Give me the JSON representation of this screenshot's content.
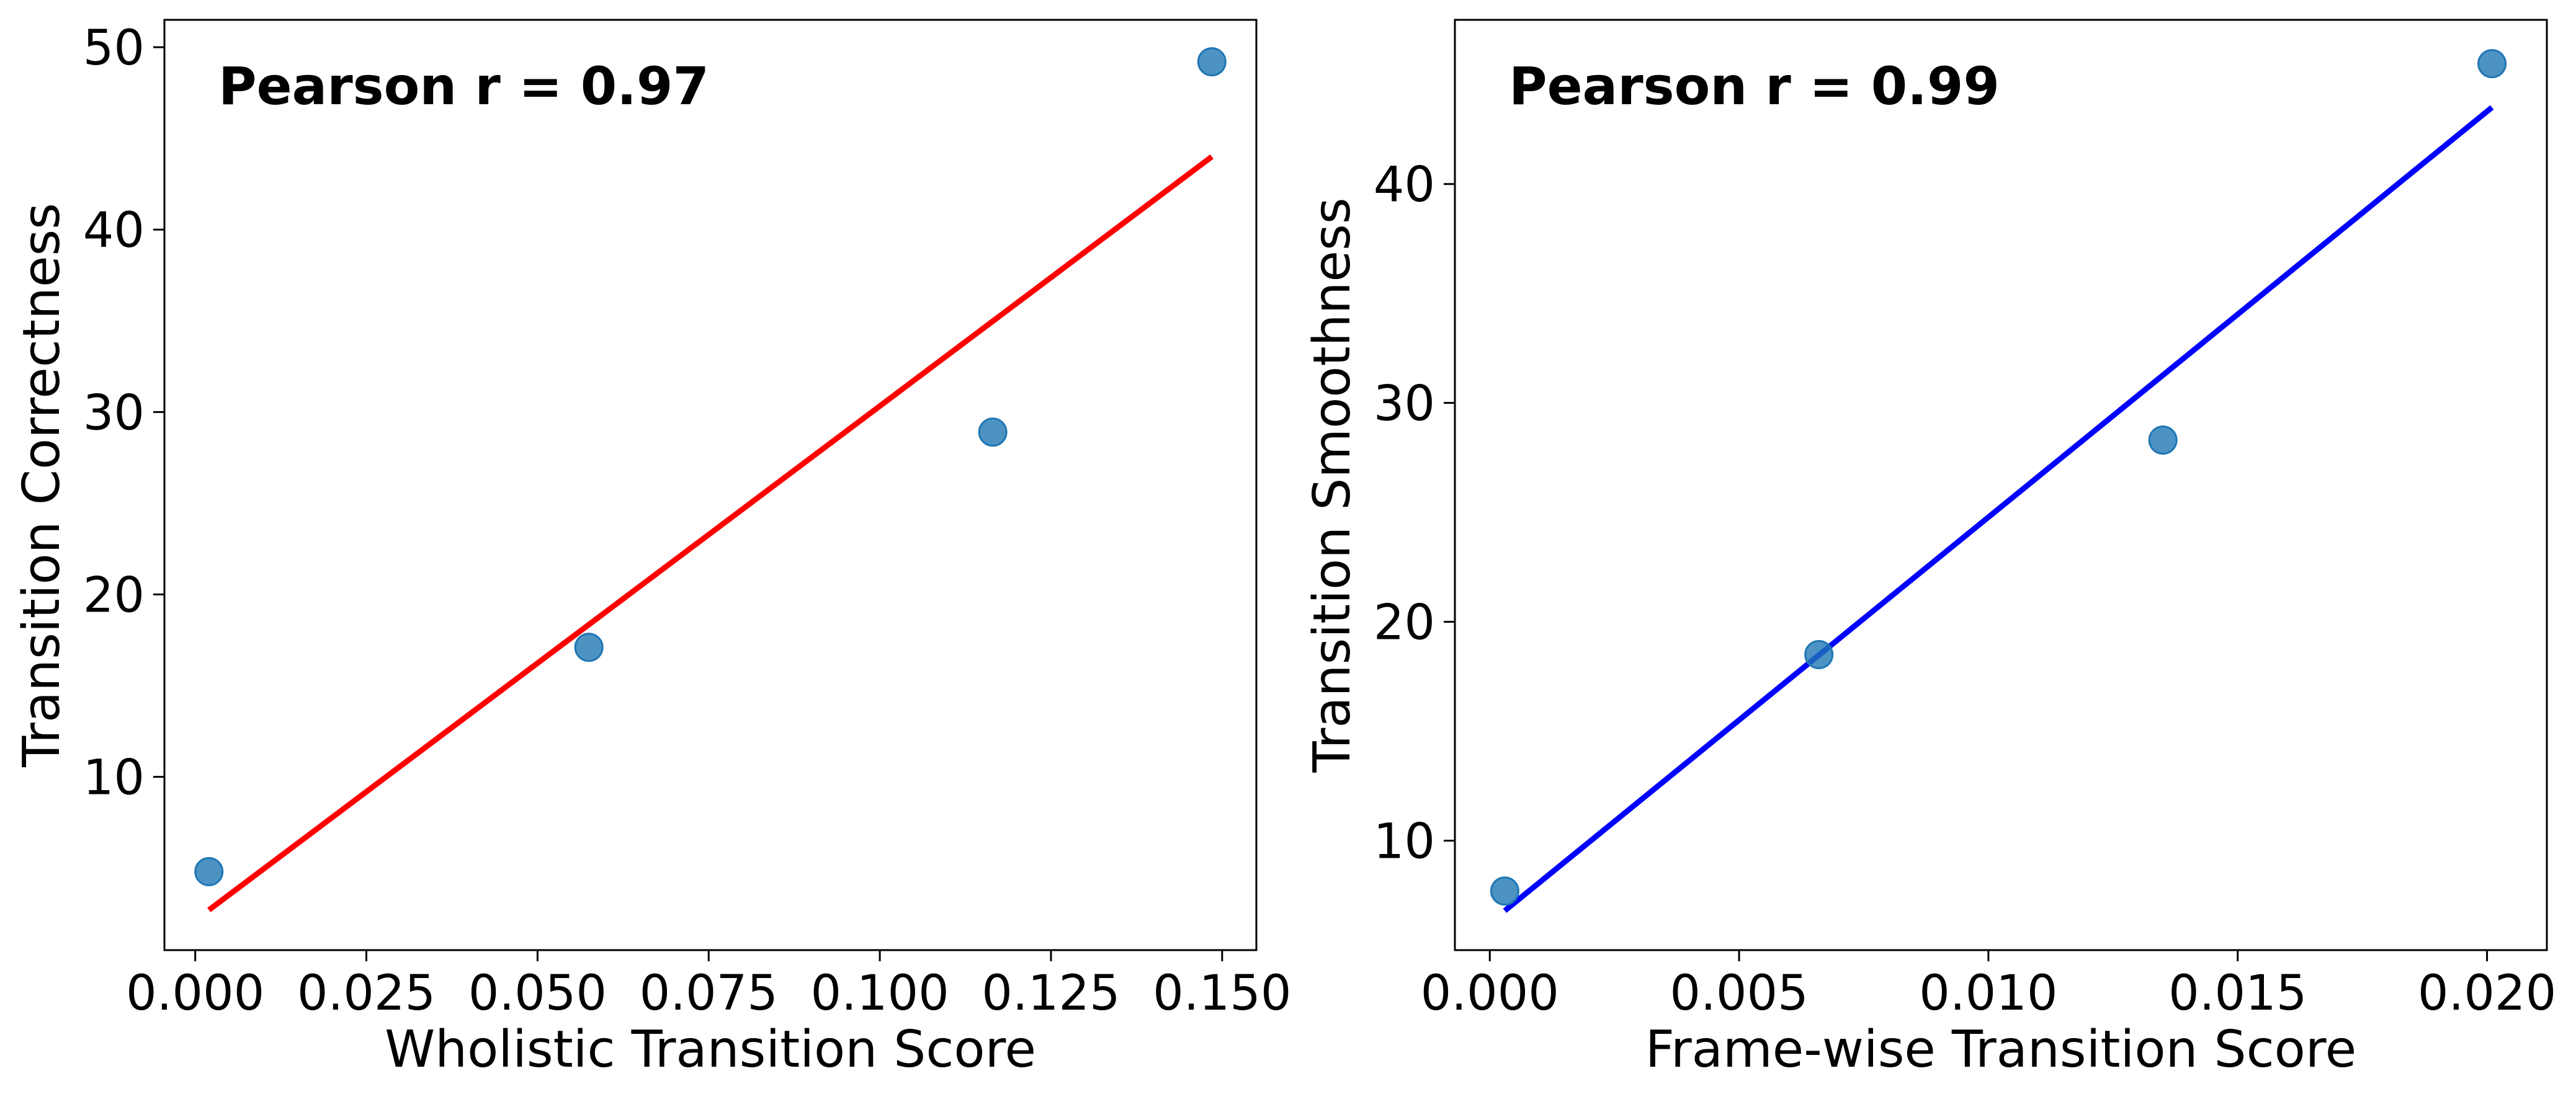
{
  "chart_data": [
    {
      "type": "scatter",
      "xlabel": "Wholistic Transition Score",
      "ylabel": "Transition Correctness",
      "annotation": "Pearson r = 0.97",
      "xlim": [
        -0.0045,
        0.155
      ],
      "ylim": [
        0.5,
        51.5
      ],
      "xticks": [
        0.0,
        0.025,
        0.05,
        0.075,
        0.1,
        0.125,
        0.15
      ],
      "xtick_labels": [
        "0.000",
        "0.025",
        "0.050",
        "0.075",
        "0.100",
        "0.125",
        "0.150"
      ],
      "yticks": [
        10,
        20,
        30,
        40,
        50
      ],
      "ytick_labels": [
        "10",
        "20",
        "30",
        "40",
        "50"
      ],
      "points": {
        "x": [
          0.002,
          0.0575,
          0.1165,
          0.1485
        ],
        "y": [
          4.8,
          17.1,
          28.9,
          49.2
        ]
      },
      "fit_line": {
        "x": [
          0.002,
          0.1485
        ],
        "y": [
          2.7,
          44.0
        ]
      },
      "marker_color": "#1f77b4",
      "line_color": "#ff0000",
      "grid": false
    },
    {
      "type": "scatter",
      "xlabel": "Frame-wise Transition Score",
      "ylabel": "Transition Smoothness",
      "annotation": "Pearson r = 0.99",
      "xlim": [
        -0.0007,
        0.0212
      ],
      "ylim": [
        5.0,
        47.5
      ],
      "xticks": [
        0.0,
        0.005,
        0.01,
        0.015,
        0.02
      ],
      "xtick_labels": [
        "0.000",
        "0.005",
        "0.010",
        "0.015",
        "0.020"
      ],
      "yticks": [
        10,
        20,
        30,
        40
      ],
      "ytick_labels": [
        "10",
        "20",
        "30",
        "40"
      ],
      "points": {
        "x": [
          0.0003,
          0.0066,
          0.0135,
          0.0201
        ],
        "y": [
          7.7,
          18.5,
          28.3,
          45.5
        ]
      },
      "fit_line": {
        "x": [
          0.0003,
          0.0201
        ],
        "y": [
          6.8,
          43.5
        ]
      },
      "marker_color": "#1f77b4",
      "line_color": "#0000ff",
      "grid": false
    }
  ]
}
